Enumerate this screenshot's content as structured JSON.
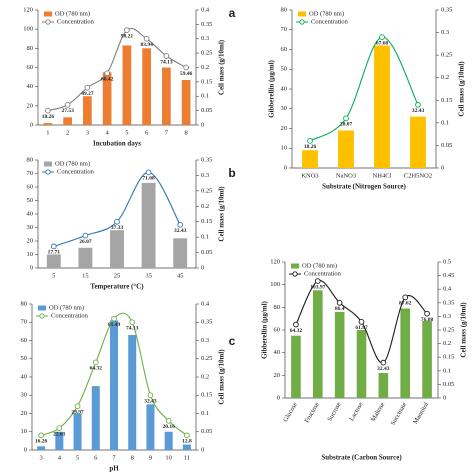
{
  "chart_data": [
    {
      "type": "bar",
      "panel_label": "a",
      "x_label": "Incubation days",
      "y2_label": "Cell mass (g/10ml)",
      "categories": [
        "1",
        "2",
        "3",
        "4",
        "5",
        "6",
        "7",
        "8"
      ],
      "ylim": [
        0,
        120
      ],
      "yticks": [
        0,
        20,
        40,
        60,
        80,
        100,
        120
      ],
      "y2lim": [
        0,
        0.4
      ],
      "y2ticks": [
        0,
        0.05,
        0.1,
        0.15,
        0.2,
        0.25,
        0.3,
        0.35,
        0.4
      ],
      "series": [
        {
          "name": "OD (780 nm)",
          "color": "#ed7d31",
          "values": [
            2,
            8,
            30,
            55,
            83,
            80,
            60,
            47
          ]
        },
        {
          "name": "Concentration",
          "color": "#7f7f7f",
          "axis": "y2",
          "values": [
            0.05,
            0.07,
            0.13,
            0.18,
            0.33,
            0.3,
            0.24,
            0.2
          ],
          "point_labels": [
            "18.26",
            "27.53",
            "49.27",
            "68.42",
            "98.21",
            "83.94",
            "74.13",
            "59.46"
          ]
        }
      ]
    },
    {
      "type": "bar",
      "panel_label": "b",
      "x_label": "Temperature (°C)",
      "y2_label": "Cell mass (g/10ml)",
      "categories": [
        "5",
        "15",
        "25",
        "35",
        "45"
      ],
      "ylim": [
        0,
        80
      ],
      "yticks": [
        0,
        10,
        20,
        30,
        40,
        50,
        60,
        70,
        80
      ],
      "y2lim": [
        0,
        0.35
      ],
      "y2ticks": [
        0,
        0.05,
        0.1,
        0.15,
        0.2,
        0.25,
        0.3,
        0.35
      ],
      "series": [
        {
          "name": "OD (780 nm)",
          "color": "#a5a5a5",
          "values": [
            10,
            15,
            28,
            63,
            22
          ]
        },
        {
          "name": "Concentration",
          "color": "#2e75b6",
          "axis": "y2",
          "values": [
            0.07,
            0.105,
            0.15,
            0.31,
            0.14
          ],
          "point_labels": [
            "17.71",
            "26.07",
            "37.33",
            "71.68",
            "32.43"
          ]
        }
      ]
    },
    {
      "type": "bar",
      "panel_label": "c",
      "x_label": "pH",
      "y2_label": "Cell mass (g/10ml)",
      "categories": [
        "3",
        "4",
        "5",
        "6",
        "7",
        "8",
        "9",
        "10",
        "11"
      ],
      "ylim": [
        0,
        80
      ],
      "yticks": [
        0,
        10,
        20,
        30,
        40,
        50,
        60,
        70,
        80
      ],
      "y2lim": [
        0,
        0.4
      ],
      "y2ticks": [
        0,
        0.05,
        0.1,
        0.15,
        0.2,
        0.25,
        0.3,
        0.35,
        0.4
      ],
      "series": [
        {
          "name": "OD (780 nm)",
          "color": "#5b9bd5",
          "values": [
            2,
            10,
            20,
            35,
            71,
            63,
            25,
            10,
            3
          ]
        },
        {
          "name": "Concentration",
          "color": "#70ad47",
          "axis": "y2",
          "values": [
            0.04,
            0.06,
            0.12,
            0.24,
            0.36,
            0.35,
            0.15,
            0.08,
            0.04
          ],
          "point_labels": [
            "16.26",
            "22.61",
            "29.97",
            "64.32",
            "81.49",
            "74.13",
            "32.43",
            "20.16",
            "12.8"
          ]
        }
      ]
    },
    {
      "type": "bar",
      "x_label": "Substrate (Nitrogen Source)",
      "y_label": "Gibberellin (µg/ml)",
      "y2_label": "Cell mass (g/10ml)",
      "categories": [
        "KNO3",
        "NaNO3",
        "NH4Cl",
        "C2H5NO2"
      ],
      "ylim": [
        0,
        80
      ],
      "yticks": [
        0,
        10,
        20,
        30,
        40,
        50,
        60,
        70,
        80
      ],
      "y2lim": [
        0,
        0.35
      ],
      "y2ticks": [
        0,
        0.05,
        0.1,
        0.15,
        0.2,
        0.25,
        0.3,
        0.35
      ],
      "series": [
        {
          "name": "OD (780 nm)",
          "color": "#ffc000",
          "values": [
            9,
            19,
            62,
            26
          ]
        },
        {
          "name": "Concentration",
          "color": "#00b050",
          "axis": "y2",
          "values": [
            0.06,
            0.11,
            0.29,
            0.14
          ],
          "point_labels": [
            "18.26",
            "28.07",
            "67.68",
            "32.43"
          ]
        }
      ]
    },
    {
      "type": "bar",
      "x_label": "Substrate (Carbon Source)",
      "y_label": "Gibberellin (µg/ml)",
      "y2_label": "Cell mass (g/10ml)",
      "rotate_categories": true,
      "categories": [
        "Glucose",
        "Fructose",
        "Sucrose",
        "Lactose",
        "Maltose",
        "Succinate",
        "Mannitol"
      ],
      "ylim": [
        0,
        120
      ],
      "yticks": [
        0,
        20,
        40,
        60,
        80,
        100,
        120
      ],
      "y2lim": [
        0,
        0.5
      ],
      "y2ticks": [
        0,
        0.05,
        0.1,
        0.15,
        0.2,
        0.25,
        0.3,
        0.35,
        0.4,
        0.45,
        0.5
      ],
      "series": [
        {
          "name": "OD (780 nm)",
          "color": "#70ad47",
          "values": [
            55,
            95,
            76,
            60,
            22,
            79,
            68
          ]
        },
        {
          "name": "Concentration",
          "color": "#1a1a1a",
          "axis": "y2",
          "values": [
            0.27,
            0.43,
            0.35,
            0.28,
            0.13,
            0.37,
            0.31
          ],
          "point_labels": [
            "64.32",
            "103.97",
            "86.4",
            "61.87",
            "32.43",
            "87.62",
            "76.08"
          ]
        }
      ]
    }
  ]
}
